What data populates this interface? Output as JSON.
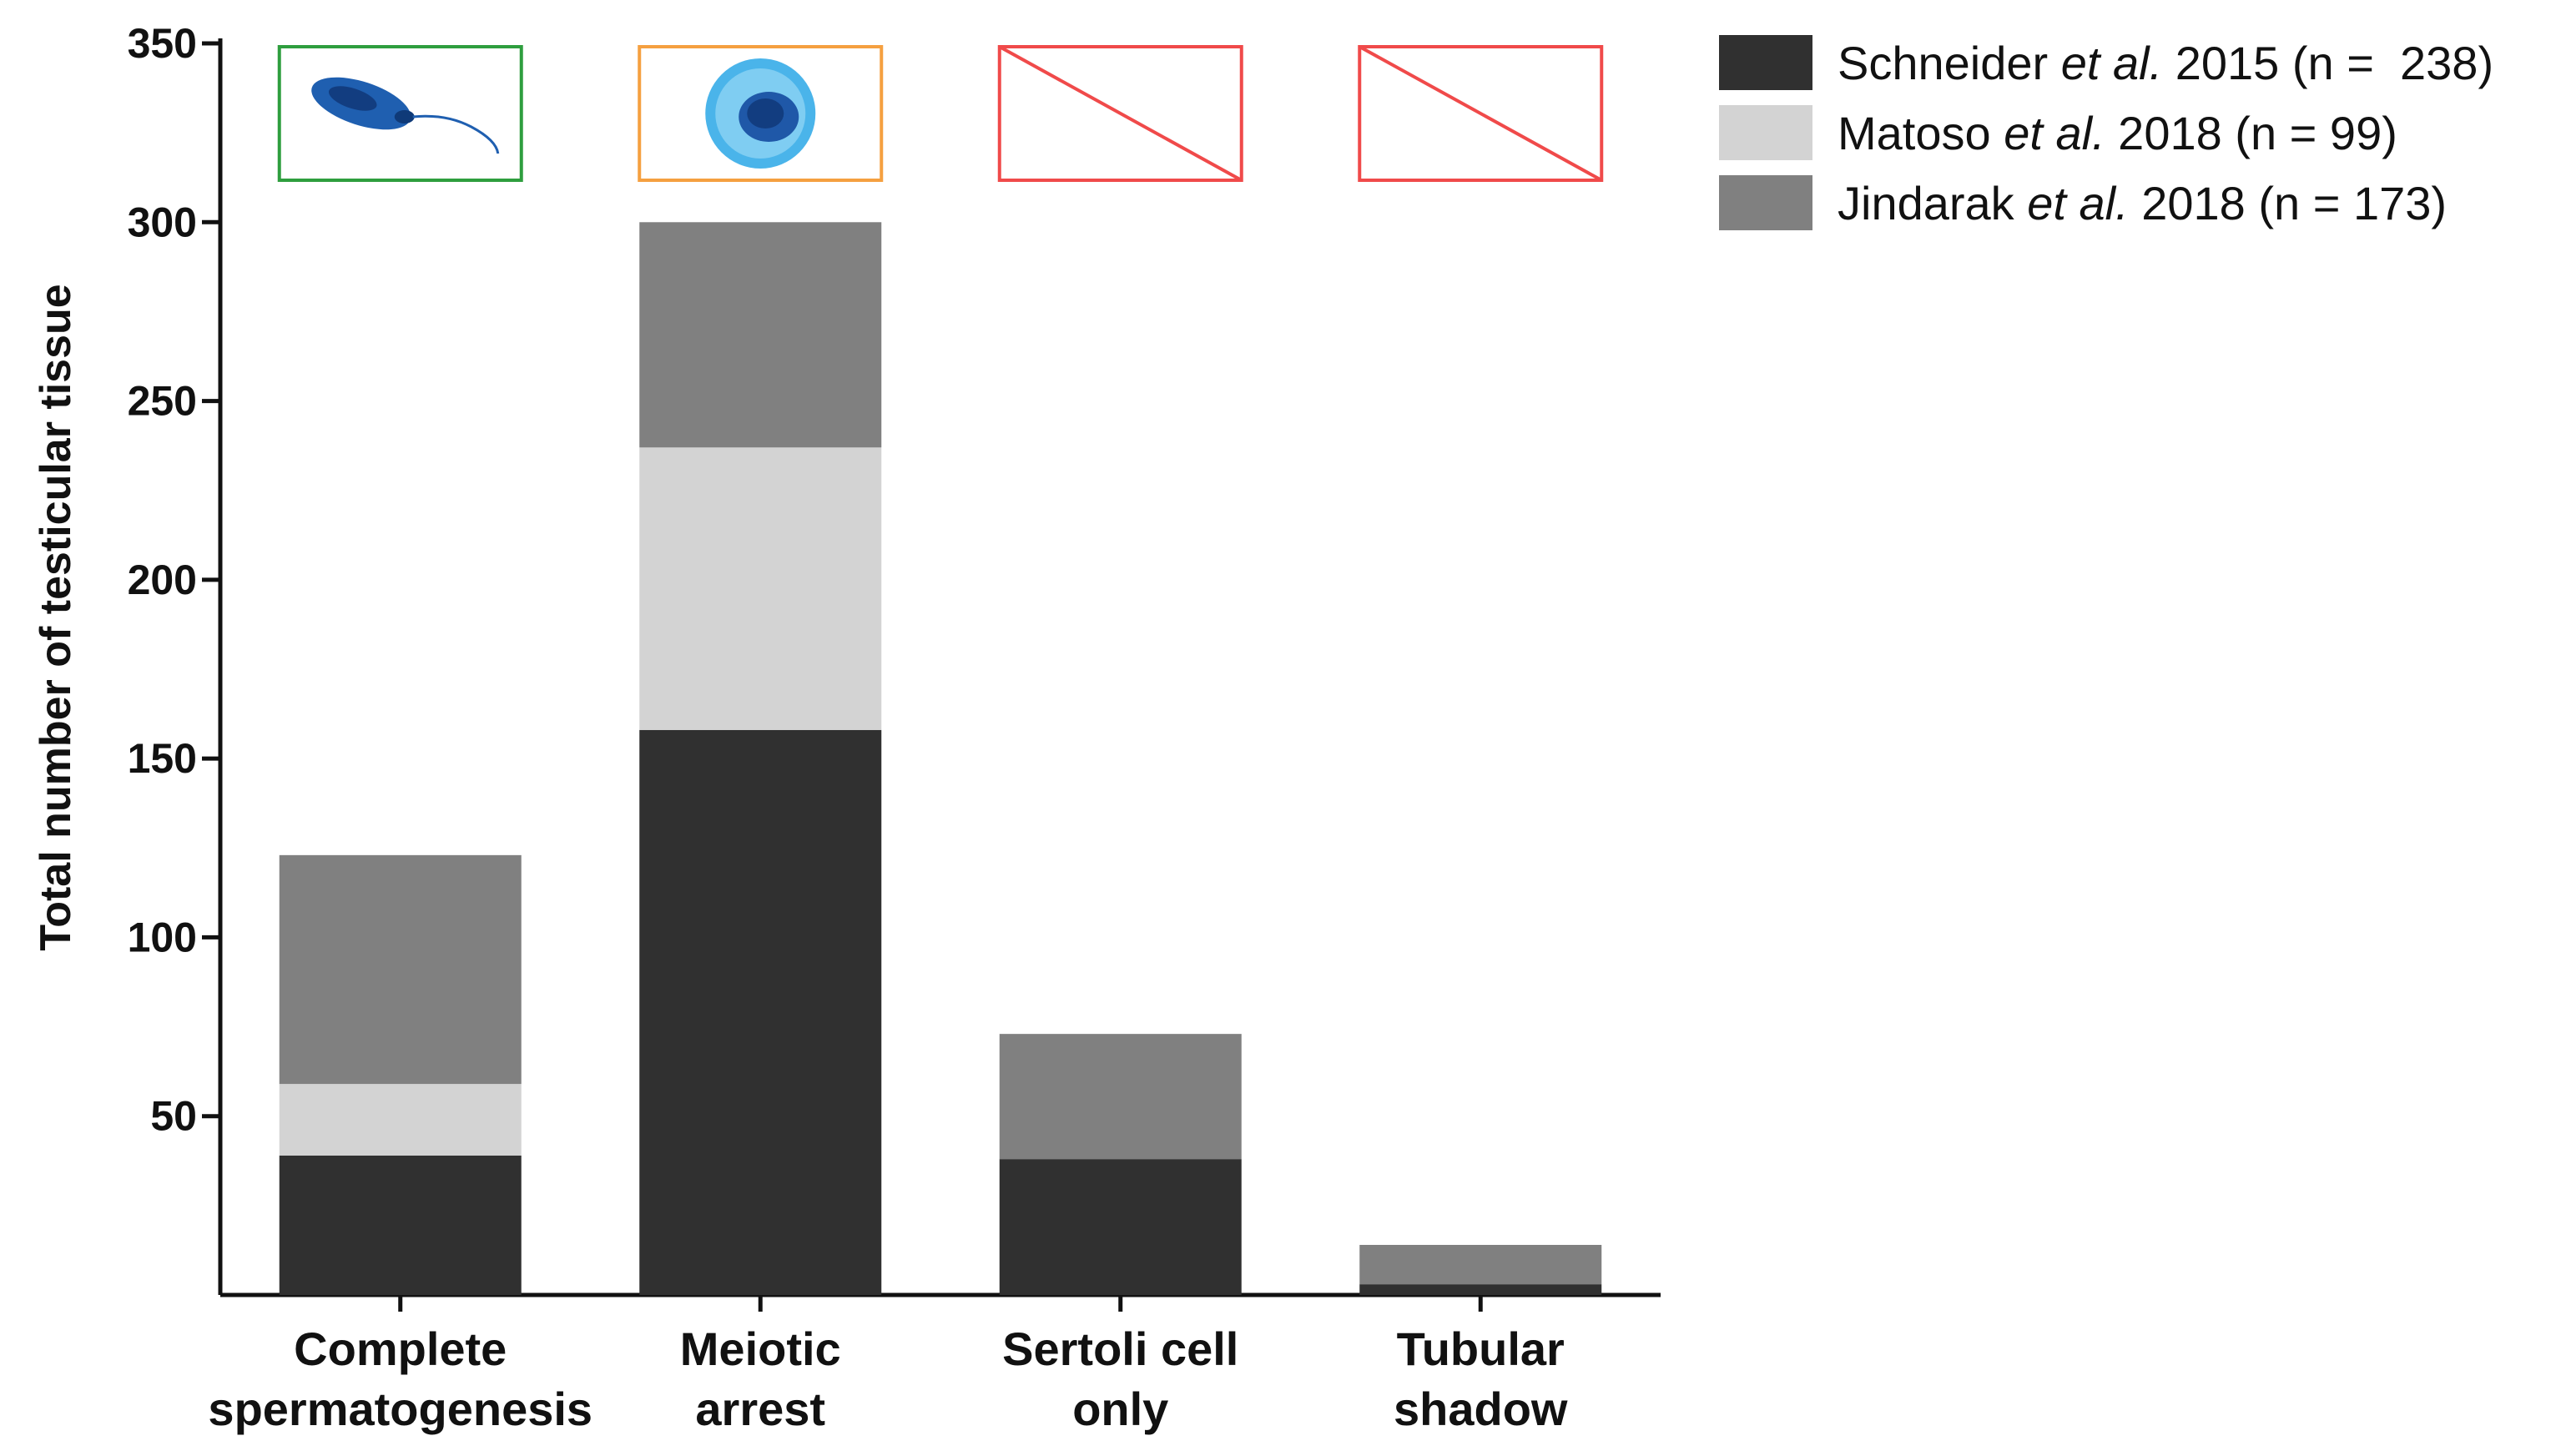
{
  "chart_data": {
    "type": "bar",
    "stacked": true,
    "categories": [
      [
        "Complete",
        "spermatogenesis"
      ],
      [
        "Meiotic",
        "arrest"
      ],
      [
        "Sertoli cell",
        "only"
      ],
      [
        "Tubular",
        "shadow"
      ]
    ],
    "category_icons": [
      "sperm-cell-icon",
      "spermatocyte-cell-icon",
      "crossed-out-box-icon",
      "crossed-out-box-icon"
    ],
    "category_icon_colors": [
      "#2e9e3e",
      "#f5a040",
      "#f04a4a",
      "#f04a4a"
    ],
    "series": [
      {
        "name_parts": [
          "Schneider ",
          "et al.",
          " 2015 (n =  238)"
        ],
        "color": "#303030",
        "values": [
          39,
          158,
          38,
          3
        ]
      },
      {
        "name_parts": [
          "Matoso ",
          "et al.",
          " 2018 (n = 99)"
        ],
        "color": "#d3d3d3",
        "values": [
          20,
          79,
          0,
          0
        ]
      },
      {
        "name_parts": [
          "Jindarak ",
          "et al.",
          " 2018 (n = 173)"
        ],
        "color": "#808080",
        "values": [
          64,
          63,
          35,
          11
        ]
      }
    ],
    "ylabel": "Total number of testicular tissue",
    "yticks": [
      50,
      100,
      150,
      200,
      250,
      300,
      350
    ],
    "ylim": [
      0,
      350
    ],
    "legend_position": "top-right",
    "grid": false
  }
}
